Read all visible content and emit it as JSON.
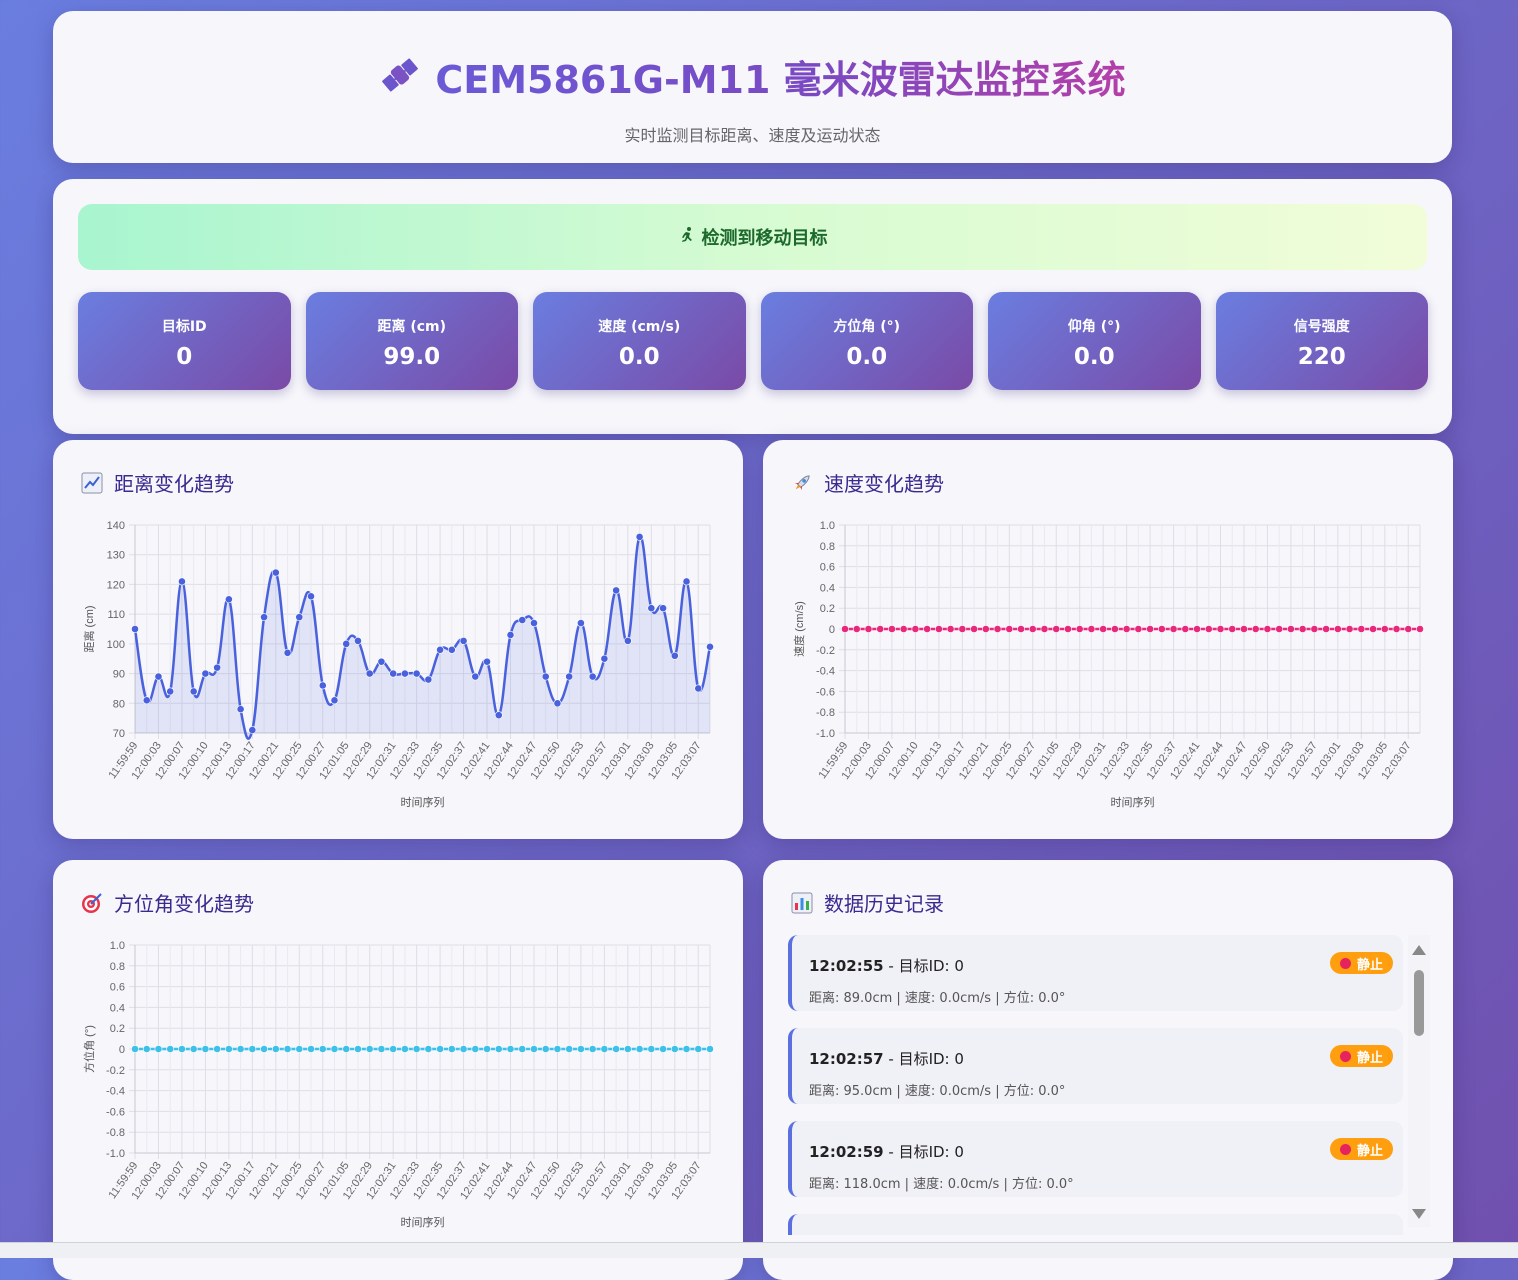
{
  "header": {
    "title": "CEM5861G-M11 毫米波雷达监控系统",
    "subtitle": "实时监测目标距离、速度及运动状态"
  },
  "status": {
    "banner": "检测到移动目标",
    "metrics": [
      {
        "label": "目标ID",
        "value": "0"
      },
      {
        "label": "距离 (cm)",
        "value": "99.0"
      },
      {
        "label": "速度 (cm/s)",
        "value": "0.0"
      },
      {
        "label": "方位角 (°)",
        "value": "0.0"
      },
      {
        "label": "仰角 (°)",
        "value": "0.0"
      },
      {
        "label": "信号强度",
        "value": "220"
      }
    ]
  },
  "charts": {
    "distance_title": "距离变化趋势",
    "speed_title": "速度变化趋势",
    "azimuth_title": "方位角变化趋势"
  },
  "chart_data": [
    {
      "type": "line",
      "title": "距离变化趋势",
      "xlabel": "时间序列",
      "ylabel": "距离 (cm)",
      "ylim": [
        70,
        140
      ],
      "yticks": [
        70,
        80,
        90,
        100,
        110,
        120,
        130,
        140
      ],
      "tick_labels": [
        "11:59:59",
        "12:00:03",
        "12:00:07",
        "12:00:10",
        "12:00:13",
        "12:00:17",
        "12:00:21",
        "12:00:25",
        "12:00:27",
        "12:01:05",
        "12:02:29",
        "12:02:31",
        "12:02:33",
        "12:02:35",
        "12:02:37",
        "12:02:41",
        "12:02:44",
        "12:02:47",
        "12:02:50",
        "12:02:53",
        "12:02:57",
        "12:03:01",
        "12:03:03",
        "12:03:05",
        "12:03:07"
      ],
      "values": [
        105,
        81,
        89,
        84,
        121,
        84,
        90,
        92,
        115,
        78,
        71,
        109,
        124,
        97,
        109,
        116,
        86,
        81,
        100,
        101,
        90,
        94,
        90,
        90,
        90,
        88,
        98,
        98,
        101,
        89,
        94,
        76,
        103,
        108,
        107,
        89,
        80,
        89,
        107,
        89,
        95,
        118,
        101,
        136,
        112,
        112,
        96,
        121,
        85,
        99
      ],
      "color": "#4a61dd",
      "grid": true
    },
    {
      "type": "line",
      "title": "速度变化趋势",
      "xlabel": "时间序列",
      "ylabel": "速度 (cm/s)",
      "ylim": [
        -1.0,
        1.0
      ],
      "yticks": [
        -1.0,
        -0.8,
        -0.6,
        -0.4,
        -0.2,
        0,
        0.2,
        0.4,
        0.6,
        0.8,
        1.0
      ],
      "tick_labels": [
        "11:59:59",
        "12:00:03",
        "12:00:07",
        "12:00:10",
        "12:00:13",
        "12:00:17",
        "12:00:21",
        "12:00:25",
        "12:00:27",
        "12:01:05",
        "12:02:29",
        "12:02:31",
        "12:02:33",
        "12:02:35",
        "12:02:37",
        "12:02:41",
        "12:02:44",
        "12:02:47",
        "12:02:50",
        "12:02:53",
        "12:02:57",
        "12:03:01",
        "12:03:03",
        "12:03:05",
        "12:03:07"
      ],
      "values": [
        0,
        0,
        0,
        0,
        0,
        0,
        0,
        0,
        0,
        0,
        0,
        0,
        0,
        0,
        0,
        0,
        0,
        0,
        0,
        0,
        0,
        0,
        0,
        0,
        0,
        0,
        0,
        0,
        0,
        0,
        0,
        0,
        0,
        0,
        0,
        0,
        0,
        0,
        0,
        0,
        0,
        0,
        0,
        0,
        0,
        0,
        0,
        0,
        0,
        0
      ],
      "color": "#e8287b",
      "grid": true
    },
    {
      "type": "line",
      "title": "方位角变化趋势",
      "xlabel": "时间序列",
      "ylabel": "方位角 (°)",
      "ylim": [
        -1.0,
        1.0
      ],
      "yticks": [
        -1.0,
        -0.8,
        -0.6,
        -0.4,
        -0.2,
        0,
        0.2,
        0.4,
        0.6,
        0.8,
        1.0
      ],
      "tick_labels": [
        "11:59:59",
        "12:00:03",
        "12:00:07",
        "12:00:10",
        "12:00:13",
        "12:00:17",
        "12:00:21",
        "12:00:25",
        "12:00:27",
        "12:01:05",
        "12:02:29",
        "12:02:31",
        "12:02:33",
        "12:02:35",
        "12:02:37",
        "12:02:41",
        "12:02:44",
        "12:02:47",
        "12:02:50",
        "12:02:53",
        "12:02:57",
        "12:03:01",
        "12:03:03",
        "12:03:05",
        "12:03:07"
      ],
      "values": [
        0,
        0,
        0,
        0,
        0,
        0,
        0,
        0,
        0,
        0,
        0,
        0,
        0,
        0,
        0,
        0,
        0,
        0,
        0,
        0,
        0,
        0,
        0,
        0,
        0,
        0,
        0,
        0,
        0,
        0,
        0,
        0,
        0,
        0,
        0,
        0,
        0,
        0,
        0,
        0,
        0,
        0,
        0,
        0,
        0,
        0,
        0,
        0,
        0,
        0
      ],
      "color": "#3fc0e8",
      "grid": true
    }
  ],
  "history": {
    "title": "数据历史记录",
    "items": [
      {
        "time": "12:02:55",
        "head": " - 目标ID: 0",
        "detail": "距离: 89.0cm | 速度: 0.0cm/s | 方位: 0.0°",
        "badge": "静止"
      },
      {
        "time": "12:02:57",
        "head": " - 目标ID: 0",
        "detail": "距离: 95.0cm | 速度: 0.0cm/s | 方位: 0.0°",
        "badge": "静止"
      },
      {
        "time": "12:02:59",
        "head": " - 目标ID: 0",
        "detail": "距离: 118.0cm | 速度: 0.0cm/s | 方位: 0.0°",
        "badge": "静止"
      }
    ]
  },
  "colors": {
    "accent": "#4a61dd",
    "badge": "#ff9f0f",
    "speed_line": "#e8287b",
    "azimuth_line": "#3fc0e8"
  }
}
